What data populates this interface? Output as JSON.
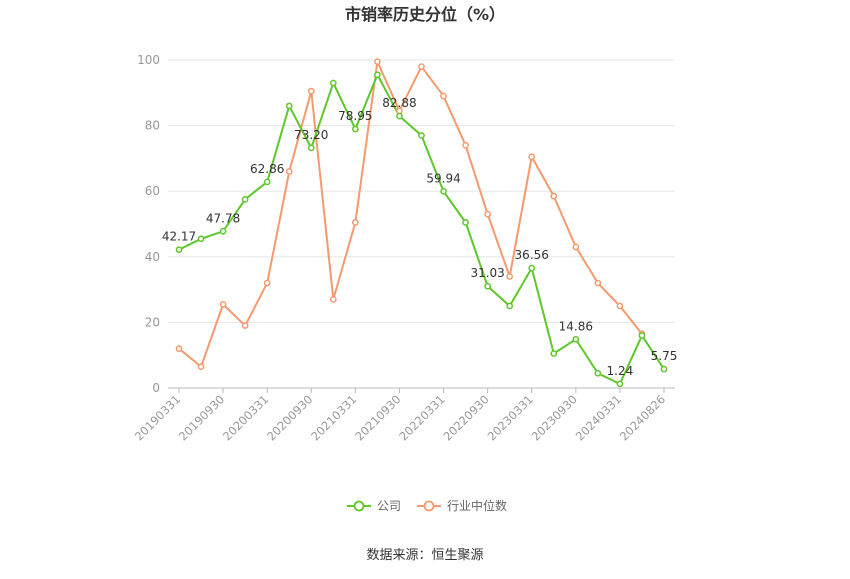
{
  "chart_data": {
    "type": "line",
    "title": "市销率历史分位（%）",
    "source": "数据来源：恒生聚源",
    "ylim": [
      0,
      100
    ],
    "yticks": [
      0,
      20,
      40,
      60,
      80,
      100
    ],
    "grid": true,
    "legend_position": "bottom",
    "x": [
      "20190331",
      "20190630",
      "20190930",
      "20191231",
      "20200331",
      "20200630",
      "20200930",
      "20201231",
      "20210331",
      "20210630",
      "20210930",
      "20211231",
      "20220331",
      "20220630",
      "20220930",
      "20221231",
      "20230331",
      "20230630",
      "20230930",
      "20231231",
      "20240331",
      "20240630",
      "20240826"
    ],
    "xtick_labels": [
      "20190331",
      "20190930",
      "20200331",
      "20200930",
      "20210331",
      "20210930",
      "20220331",
      "20220930",
      "20230331",
      "20230930",
      "20240331",
      "20240826"
    ],
    "series": [
      {
        "name": "公司",
        "color": "#5ec72a",
        "values": [
          42.17,
          45.5,
          47.78,
          57.5,
          62.86,
          86.0,
          73.2,
          93.0,
          78.95,
          95.5,
          82.88,
          77.0,
          59.94,
          50.5,
          31.03,
          25.0,
          36.56,
          10.5,
          14.86,
          4.5,
          1.24,
          16.0,
          5.75
        ],
        "data_labels": [
          {
            "index": 0,
            "text": "42.17"
          },
          {
            "index": 2,
            "text": "47.78"
          },
          {
            "index": 4,
            "text": "62.86"
          },
          {
            "index": 6,
            "text": "73.20"
          },
          {
            "index": 8,
            "text": "78.95"
          },
          {
            "index": 10,
            "text": "82.88"
          },
          {
            "index": 12,
            "text": "59.94"
          },
          {
            "index": 14,
            "text": "31.03"
          },
          {
            "index": 16,
            "text": "36.56"
          },
          {
            "index": 18,
            "text": "14.86"
          },
          {
            "index": 20,
            "text": "1.24"
          },
          {
            "index": 22,
            "text": "5.75"
          }
        ]
      },
      {
        "name": "行业中位数",
        "color": "#f59a6e",
        "values": [
          12.0,
          6.5,
          25.5,
          19.0,
          32.0,
          66.0,
          90.5,
          27.0,
          50.5,
          99.5,
          84.5,
          98.0,
          89.0,
          74.0,
          53.0,
          34.0,
          70.5,
          58.5,
          43.0,
          32.0,
          25.0,
          16.5,
          null
        ]
      }
    ]
  }
}
